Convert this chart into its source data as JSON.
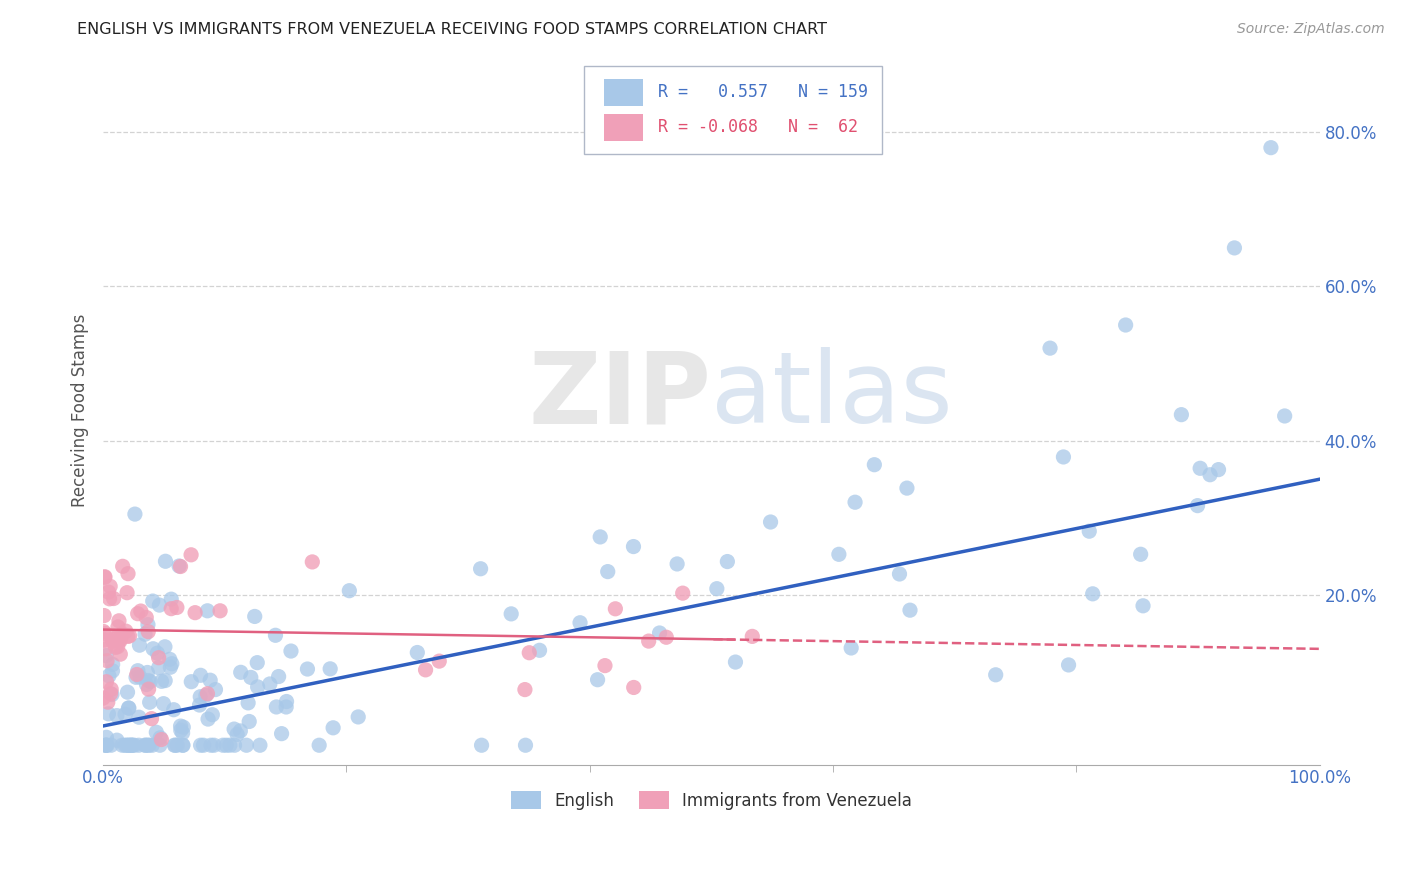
{
  "title": "ENGLISH VS IMMIGRANTS FROM VENEZUELA RECEIVING FOOD STAMPS CORRELATION CHART",
  "source": "Source: ZipAtlas.com",
  "ylabel": "Receiving Food Stamps",
  "legend_english": "English",
  "legend_venezuela": "Immigrants from Venezuela",
  "r_english": 0.557,
  "n_english": 159,
  "r_venezuela": -0.068,
  "n_venezuela": 62,
  "color_english": "#a8c8e8",
  "color_venezuela": "#f0a0b8",
  "color_line_english": "#3060c0",
  "color_line_venezuela": "#e06080",
  "color_r_english": "#4472c4",
  "color_r_venezuela": "#e05070",
  "background_color": "#ffffff",
  "grid_color": "#c8c8c8",
  "watermark_zip": "ZIP",
  "watermark_atlas": "atlas",
  "xlim": [
    0,
    1.0
  ],
  "ylim": [
    -0.02,
    0.9
  ],
  "eng_intercept": 0.03,
  "eng_slope": 0.32,
  "ven_intercept": 0.155,
  "ven_slope": -0.025
}
